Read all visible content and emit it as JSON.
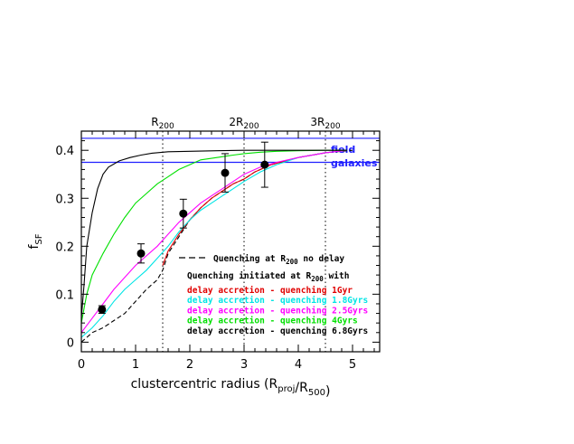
{
  "chart_data": {
    "type": "line",
    "xlabel": "clustercentric radius (R_proj/R_500)",
    "ylabel": "f_SF",
    "xlim": [
      0,
      5.5
    ],
    "ylim": [
      -0.02,
      0.44
    ],
    "xticks": [
      0,
      1,
      2,
      3,
      4,
      5
    ],
    "yticks": [
      0,
      0.1,
      0.2,
      0.3,
      0.4
    ],
    "xtick_labels": [
      "0",
      "1",
      "2",
      "3",
      "4",
      "5"
    ],
    "ytick_labels": [
      "0",
      "0.1",
      "0.2",
      "0.3",
      "0.4"
    ],
    "vlines": [
      {
        "x": 1.5,
        "label": "R200"
      },
      {
        "x": 3.0,
        "label": "2R200"
      },
      {
        "x": 4.5,
        "label": "3R200"
      }
    ],
    "hband": {
      "y_low": 0.375,
      "y_high": 0.425,
      "label_line1": "field",
      "label_line2": "galaxies",
      "color": "#1f1fff"
    },
    "series": [
      {
        "name": "Quenching at R200 no delay",
        "color": "#000000",
        "dash": true,
        "x": [
          0,
          0.2,
          0.4,
          0.6,
          0.8,
          1.0,
          1.2,
          1.4,
          1.5,
          1.6,
          1.8,
          2.0,
          2.2,
          2.4,
          2.6,
          2.8,
          3.0,
          3.2,
          3.5,
          4.0,
          4.5,
          5.0
        ],
        "y": [
          0.0,
          0.02,
          0.03,
          0.045,
          0.06,
          0.085,
          0.11,
          0.13,
          0.15,
          0.185,
          0.22,
          0.255,
          0.28,
          0.3,
          0.315,
          0.33,
          0.34,
          0.355,
          0.37,
          0.385,
          0.395,
          0.4
        ]
      },
      {
        "name": "delay accretion - quenching 1Gyr",
        "color": "#e00000",
        "dash": false,
        "x": [
          1.5,
          1.6,
          1.8,
          2.0,
          2.2,
          2.4,
          2.6,
          2.8,
          3.0,
          3.2,
          3.5,
          4.0,
          4.5,
          4.9
        ],
        "y": [
          0.16,
          0.19,
          0.225,
          0.255,
          0.28,
          0.3,
          0.315,
          0.33,
          0.34,
          0.355,
          0.37,
          0.385,
          0.395,
          0.4
        ]
      },
      {
        "name": "delay accretion - quenching 1.8Gyrs",
        "color": "#00e5e5",
        "dash": false,
        "x": [
          0,
          0.2,
          0.4,
          0.6,
          0.8,
          1.0,
          1.2,
          1.4,
          1.6,
          1.8,
          2.0,
          2.2,
          2.4,
          2.6,
          2.8,
          3.0,
          3.3,
          3.6,
          4.0,
          4.5,
          4.9
        ],
        "y": [
          0.01,
          0.03,
          0.055,
          0.085,
          0.11,
          0.13,
          0.15,
          0.175,
          0.2,
          0.23,
          0.255,
          0.275,
          0.29,
          0.305,
          0.32,
          0.335,
          0.355,
          0.37,
          0.385,
          0.395,
          0.4
        ]
      },
      {
        "name": "delay accretion - quenching 2.5Gyrs",
        "color": "#ff00ff",
        "dash": false,
        "x": [
          0,
          0.2,
          0.4,
          0.6,
          0.8,
          1.0,
          1.2,
          1.4,
          1.6,
          1.8,
          2.0,
          2.2,
          2.4,
          2.6,
          2.8,
          3.0,
          3.3,
          3.6,
          4.0,
          4.5,
          4.9
        ],
        "y": [
          0.02,
          0.05,
          0.08,
          0.11,
          0.135,
          0.16,
          0.18,
          0.2,
          0.225,
          0.25,
          0.27,
          0.29,
          0.305,
          0.32,
          0.335,
          0.35,
          0.365,
          0.375,
          0.385,
          0.395,
          0.4
        ]
      },
      {
        "name": "delay accretion - quenching 4Gyrs",
        "color": "#00e000",
        "dash": false,
        "x": [
          0,
          0.1,
          0.2,
          0.4,
          0.6,
          0.8,
          1.0,
          1.2,
          1.4,
          1.6,
          1.8,
          2.0,
          2.2,
          2.5,
          2.8,
          3.0,
          3.3,
          3.6,
          4.0,
          4.5,
          4.9
        ],
        "y": [
          0.04,
          0.1,
          0.14,
          0.185,
          0.225,
          0.26,
          0.29,
          0.31,
          0.33,
          0.345,
          0.36,
          0.37,
          0.38,
          0.385,
          0.39,
          0.393,
          0.396,
          0.398,
          0.399,
          0.4,
          0.4
        ]
      },
      {
        "name": "delay accretion - quenching 6.8Gyrs",
        "color": "#000000",
        "dash": false,
        "x": [
          0,
          0.05,
          0.1,
          0.2,
          0.3,
          0.4,
          0.5,
          0.7,
          0.9,
          1.1,
          1.3,
          1.6,
          2.0,
          2.5,
          3.0,
          3.5,
          4.0,
          4.5,
          4.9
        ],
        "y": [
          0.05,
          0.12,
          0.2,
          0.27,
          0.32,
          0.35,
          0.365,
          0.378,
          0.385,
          0.39,
          0.394,
          0.397,
          0.398,
          0.399,
          0.4,
          0.4,
          0.4,
          0.4,
          0.4
        ]
      }
    ],
    "points": [
      {
        "x": 0.38,
        "y": 0.068,
        "err": 0.008
      },
      {
        "x": 1.1,
        "y": 0.185,
        "err": 0.02
      },
      {
        "x": 1.88,
        "y": 0.268,
        "err": 0.03
      },
      {
        "x": 2.65,
        "y": 0.353,
        "err": 0.04
      },
      {
        "x": 3.38,
        "y": 0.37,
        "err": 0.047
      }
    ],
    "legend": {
      "dash_label": "Quenching at R200 no delay",
      "header": "Quenching initiated at R200 with",
      "entries": [
        {
          "label": "delay accretion - quenching 1Gyr",
          "color": "#e00000"
        },
        {
          "label": "delay accretion - quenching 1.8Gyrs",
          "color": "#00e5e5"
        },
        {
          "label": "delay accretion - quenching 2.5Gyrs",
          "color": "#ff00ff"
        },
        {
          "label": "delay accretion - quenching 4Gyrs",
          "color": "#00e000"
        },
        {
          "label": "delay accretion - quenching 6.8Gyrs",
          "color": "#000000"
        }
      ]
    }
  }
}
